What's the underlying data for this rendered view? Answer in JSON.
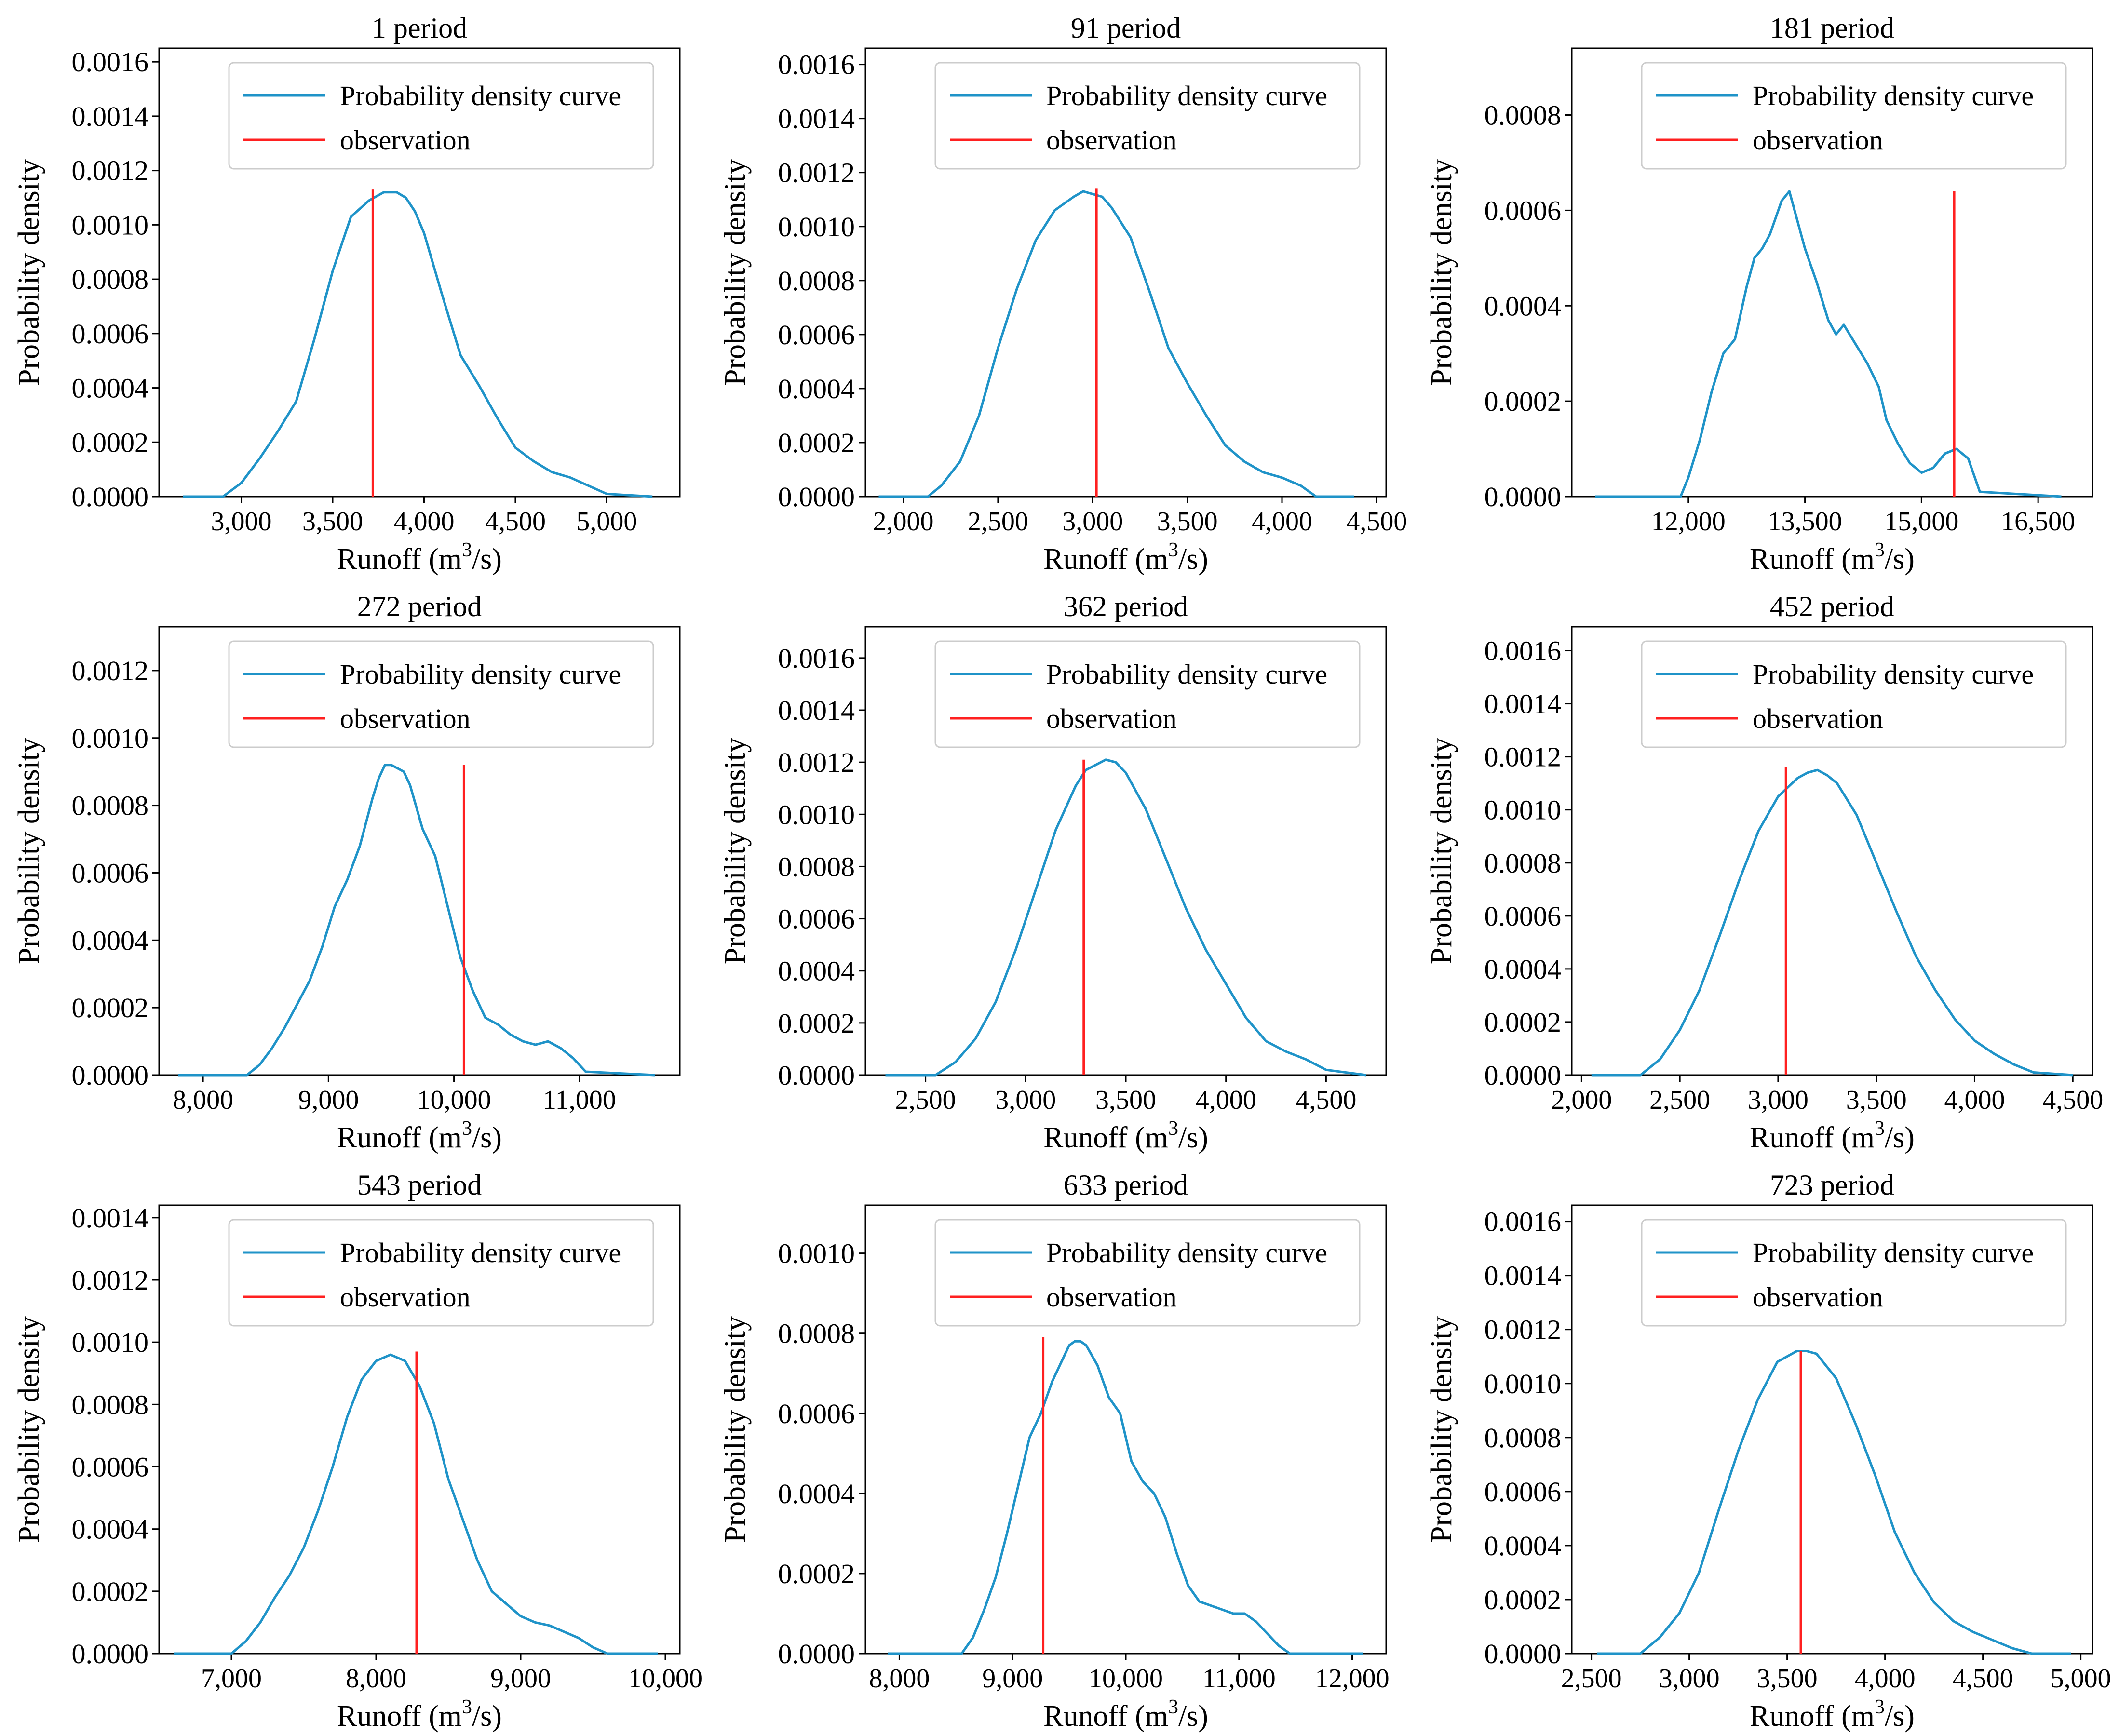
{
  "colors": {
    "curve": "#1f93c8",
    "observation": "#ff2020",
    "axis": "#000000",
    "legend_border": "#cccccc"
  },
  "chart_data": [
    {
      "type": "line",
      "title": "1 period",
      "xlabel": "Runoff (m",
      "xlabel_sup": "3",
      "xlabel_tail": "/s)",
      "ylabel": "Probability density",
      "xlim": [
        2550,
        5400
      ],
      "ylim": [
        0,
        0.00165
      ],
      "xticks": [
        3000,
        3500,
        4000,
        4500,
        5000
      ],
      "xtick_labels": [
        "3,000",
        "3,500",
        "4,000",
        "4,500",
        "5,000"
      ],
      "yticks": [
        0,
        0.0002,
        0.0004,
        0.0006,
        0.0008,
        0.001,
        0.0012,
        0.0014,
        0.0016
      ],
      "ytick_labels": [
        "0.0000",
        "0.0002",
        "0.0004",
        "0.0006",
        "0.0008",
        "0.0010",
        "0.0012",
        "0.0014",
        "0.0016"
      ],
      "series": [
        {
          "name": "Probability density curve",
          "x": [
            2680,
            2900,
            3000,
            3100,
            3200,
            3300,
            3400,
            3500,
            3600,
            3700,
            3780,
            3850,
            3900,
            3950,
            4000,
            4100,
            4200,
            4300,
            4400,
            4500,
            4600,
            4700,
            4800,
            4900,
            5000,
            5250
          ],
          "y": [
            0,
            0,
            5e-05,
            0.00014,
            0.00024,
            0.00035,
            0.00058,
            0.00083,
            0.00103,
            0.00109,
            0.00112,
            0.00112,
            0.0011,
            0.00105,
            0.00097,
            0.00074,
            0.00052,
            0.00041,
            0.00029,
            0.00018,
            0.00013,
            9e-05,
            7e-05,
            4e-05,
            1e-05,
            0
          ]
        }
      ],
      "observation": {
        "name": "observation",
        "x": 3720,
        "y_top": 0.00113
      }
    },
    {
      "type": "line",
      "title": "91 period",
      "xlabel": "Runoff (m",
      "xlabel_sup": "3",
      "xlabel_tail": "/s)",
      "ylabel": "Probability density",
      "xlim": [
        1800,
        4550
      ],
      "ylim": [
        0,
        0.00166
      ],
      "xticks": [
        2000,
        2500,
        3000,
        3500,
        4000,
        4500
      ],
      "xtick_labels": [
        "2,000",
        "2,500",
        "3,000",
        "3,500",
        "4,000",
        "4,500"
      ],
      "yticks": [
        0,
        0.0002,
        0.0004,
        0.0006,
        0.0008,
        0.001,
        0.0012,
        0.0014,
        0.0016
      ],
      "ytick_labels": [
        "0.0000",
        "0.0002",
        "0.0004",
        "0.0006",
        "0.0008",
        "0.0010",
        "0.0012",
        "0.0014",
        "0.0016"
      ],
      "series": [
        {
          "name": "Probability density curve",
          "x": [
            1870,
            2130,
            2200,
            2300,
            2400,
            2500,
            2600,
            2700,
            2800,
            2900,
            2950,
            3000,
            3050,
            3100,
            3200,
            3300,
            3400,
            3500,
            3600,
            3700,
            3800,
            3900,
            4000,
            4100,
            4180,
            4380
          ],
          "y": [
            0,
            0,
            4e-05,
            0.00013,
            0.0003,
            0.00055,
            0.00077,
            0.00095,
            0.00106,
            0.00111,
            0.00113,
            0.00112,
            0.00111,
            0.00107,
            0.00096,
            0.00076,
            0.00055,
            0.00042,
            0.0003,
            0.00019,
            0.00013,
            9e-05,
            7e-05,
            4e-05,
            0,
            0
          ]
        }
      ],
      "observation": {
        "name": "observation",
        "x": 3020,
        "y_top": 0.00114
      }
    },
    {
      "type": "line",
      "title": "181 period",
      "xlabel": "Runoff (m",
      "xlabel_sup": "3",
      "xlabel_tail": "/s)",
      "ylabel": "Probability density",
      "xlim": [
        10500,
        17200
      ],
      "ylim": [
        0,
        0.00094
      ],
      "xticks": [
        12000,
        13500,
        15000,
        16500
      ],
      "xtick_labels": [
        "12,000",
        "13,500",
        "15,000",
        "16,500"
      ],
      "yticks": [
        0,
        0.0002,
        0.0004,
        0.0006,
        0.0008
      ],
      "ytick_labels": [
        "0.0000",
        "0.0002",
        "0.0004",
        "0.0006",
        "0.0008"
      ],
      "series": [
        {
          "name": "Probability density curve",
          "x": [
            10800,
            11900,
            12000,
            12150,
            12300,
            12450,
            12600,
            12750,
            12850,
            12950,
            13050,
            13200,
            13300,
            13400,
            13500,
            13650,
            13800,
            13900,
            14000,
            14150,
            14300,
            14450,
            14550,
            14700,
            14850,
            15000,
            15150,
            15300,
            15450,
            15600,
            15750,
            16800
          ],
          "y": [
            0,
            0,
            4e-05,
            0.00012,
            0.00022,
            0.0003,
            0.00033,
            0.00044,
            0.0005,
            0.00052,
            0.00055,
            0.00062,
            0.00064,
            0.00058,
            0.00052,
            0.00045,
            0.00037,
            0.00034,
            0.00036,
            0.00032,
            0.00028,
            0.00023,
            0.00016,
            0.00011,
            7e-05,
            5e-05,
            6e-05,
            9e-05,
            0.0001,
            8e-05,
            1e-05,
            0
          ]
        }
      ],
      "observation": {
        "name": "observation",
        "x": 15420,
        "y_top": 0.00064
      }
    },
    {
      "type": "line",
      "title": "272 period",
      "xlabel": "Runoff (m",
      "xlabel_sup": "3",
      "xlabel_tail": "/s)",
      "ylabel": "Probability density",
      "xlim": [
        7650,
        11800
      ],
      "ylim": [
        0,
        0.00133
      ],
      "xticks": [
        8000,
        9000,
        10000,
        11000
      ],
      "xtick_labels": [
        "8,000",
        "9,000",
        "10,000",
        "11,000"
      ],
      "yticks": [
        0,
        0.0002,
        0.0004,
        0.0006,
        0.0008,
        0.001,
        0.0012
      ],
      "ytick_labels": [
        "0.0000",
        "0.0002",
        "0.0004",
        "0.0006",
        "0.0008",
        "0.0010",
        "0.0012"
      ],
      "series": [
        {
          "name": "Probability density curve",
          "x": [
            7800,
            8350,
            8450,
            8550,
            8650,
            8750,
            8850,
            8950,
            9050,
            9150,
            9250,
            9350,
            9400,
            9450,
            9500,
            9550,
            9600,
            9650,
            9750,
            9850,
            9950,
            10050,
            10150,
            10250,
            10350,
            10450,
            10550,
            10650,
            10750,
            10850,
            10950,
            11050,
            11600
          ],
          "y": [
            0,
            0,
            3e-05,
            8e-05,
            0.00014,
            0.00021,
            0.00028,
            0.00038,
            0.0005,
            0.00058,
            0.00068,
            0.00082,
            0.00088,
            0.00092,
            0.00092,
            0.00091,
            0.0009,
            0.00086,
            0.00073,
            0.00065,
            0.0005,
            0.00035,
            0.00025,
            0.00017,
            0.00015,
            0.00012,
            0.0001,
            9e-05,
            0.0001,
            8e-05,
            5e-05,
            1e-05,
            0
          ]
        }
      ],
      "observation": {
        "name": "observation",
        "x": 10080,
        "y_top": 0.00092
      }
    },
    {
      "type": "line",
      "title": "362 period",
      "xlabel": "Runoff (m",
      "xlabel_sup": "3",
      "xlabel_tail": "/s)",
      "ylabel": "Probability density",
      "xlim": [
        2200,
        4800
      ],
      "ylim": [
        0,
        0.00172
      ],
      "xticks": [
        2500,
        3000,
        3500,
        4000,
        4500
      ],
      "xtick_labels": [
        "2,500",
        "3,000",
        "3,500",
        "4,000",
        "4,500"
      ],
      "yticks": [
        0,
        0.0002,
        0.0004,
        0.0006,
        0.0008,
        0.001,
        0.0012,
        0.0014,
        0.0016
      ],
      "ytick_labels": [
        "0.0000",
        "0.0002",
        "0.0004",
        "0.0006",
        "0.0008",
        "0.0010",
        "0.0012",
        "0.0014",
        "0.0016"
      ],
      "series": [
        {
          "name": "Probability density curve",
          "x": [
            2300,
            2550,
            2650,
            2750,
            2850,
            2950,
            3050,
            3150,
            3250,
            3300,
            3350,
            3400,
            3450,
            3500,
            3600,
            3700,
            3800,
            3900,
            4000,
            4100,
            4200,
            4300,
            4400,
            4500,
            4700
          ],
          "y": [
            0,
            0,
            5e-05,
            0.00014,
            0.00028,
            0.00048,
            0.00071,
            0.00094,
            0.00111,
            0.00117,
            0.00119,
            0.00121,
            0.0012,
            0.00116,
            0.00102,
            0.00083,
            0.00064,
            0.00048,
            0.00035,
            0.00022,
            0.00013,
            9e-05,
            6e-05,
            2e-05,
            0
          ]
        }
      ],
      "observation": {
        "name": "observation",
        "x": 3290,
        "y_top": 0.00121
      }
    },
    {
      "type": "line",
      "title": "452 period",
      "xlabel": "Runoff (m",
      "xlabel_sup": "3",
      "xlabel_tail": "/s)",
      "ylabel": "Probability density",
      "xlim": [
        1950,
        4600
      ],
      "ylim": [
        0,
        0.00169
      ],
      "xticks": [
        2000,
        2500,
        3000,
        3500,
        4000,
        4500
      ],
      "xtick_labels": [
        "2,000",
        "2,500",
        "3,000",
        "3,500",
        "4,000",
        "4,500"
      ],
      "yticks": [
        0,
        0.0002,
        0.0004,
        0.0006,
        0.0008,
        0.001,
        0.0012,
        0.0014,
        0.0016
      ],
      "ytick_labels": [
        "0.0000",
        "0.0002",
        "0.0004",
        "0.0006",
        "0.0008",
        "0.0010",
        "0.0012",
        "0.0014",
        "0.0016"
      ],
      "series": [
        {
          "name": "Probability density curve",
          "x": [
            2050,
            2300,
            2400,
            2500,
            2600,
            2700,
            2800,
            2900,
            3000,
            3100,
            3150,
            3200,
            3250,
            3300,
            3400,
            3500,
            3600,
            3700,
            3800,
            3900,
            4000,
            4100,
            4200,
            4300,
            4500
          ],
          "y": [
            0,
            0,
            6e-05,
            0.00017,
            0.00032,
            0.00052,
            0.00073,
            0.00092,
            0.00105,
            0.00112,
            0.00114,
            0.00115,
            0.00113,
            0.0011,
            0.00098,
            0.0008,
            0.00062,
            0.00045,
            0.00032,
            0.00021,
            0.00013,
            8e-05,
            4e-05,
            1e-05,
            0
          ]
        }
      ],
      "observation": {
        "name": "observation",
        "x": 3040,
        "y_top": 0.00116
      }
    },
    {
      "type": "line",
      "title": "543 period",
      "xlabel": "Runoff (m",
      "xlabel_sup": "3",
      "xlabel_tail": "/s)",
      "ylabel": "Probability density",
      "xlim": [
        6500,
        10100
      ],
      "ylim": [
        0,
        0.00144
      ],
      "xticks": [
        7000,
        8000,
        9000,
        10000
      ],
      "xtick_labels": [
        "7,000",
        "8,000",
        "9,000",
        "10,000"
      ],
      "yticks": [
        0,
        0.0002,
        0.0004,
        0.0006,
        0.0008,
        0.001,
        0.0012,
        0.0014
      ],
      "ytick_labels": [
        "0.0000",
        "0.0002",
        "0.0004",
        "0.0006",
        "0.0008",
        "0.0010",
        "0.0012",
        "0.0014"
      ],
      "series": [
        {
          "name": "Probability density curve",
          "x": [
            6600,
            7000,
            7100,
            7200,
            7300,
            7400,
            7500,
            7600,
            7700,
            7800,
            7900,
            8000,
            8100,
            8200,
            8300,
            8400,
            8500,
            8600,
            8700,
            8800,
            8900,
            9000,
            9100,
            9200,
            9300,
            9400,
            9500,
            9600,
            9950
          ],
          "y": [
            0,
            0,
            4e-05,
            0.0001,
            0.00018,
            0.00025,
            0.00034,
            0.00046,
            0.0006,
            0.00076,
            0.00088,
            0.00094,
            0.00096,
            0.00094,
            0.00086,
            0.00074,
            0.00056,
            0.00043,
            0.0003,
            0.0002,
            0.00016,
            0.00012,
            0.0001,
            9e-05,
            7e-05,
            5e-05,
            2e-05,
            0,
            0
          ]
        }
      ],
      "observation": {
        "name": "observation",
        "x": 8280,
        "y_top": 0.00097
      }
    },
    {
      "type": "line",
      "title": "633 period",
      "xlabel": "Runoff (m",
      "xlabel_sup": "3",
      "xlabel_tail": "/s)",
      "ylabel": "Probability density",
      "xlim": [
        7700,
        12300
      ],
      "ylim": [
        0,
        0.00112
      ],
      "xticks": [
        8000,
        9000,
        10000,
        11000,
        12000
      ],
      "xtick_labels": [
        "8,000",
        "9,000",
        "10,000",
        "11,000",
        "12,000"
      ],
      "yticks": [
        0,
        0.0002,
        0.0004,
        0.0006,
        0.0008,
        0.001
      ],
      "ytick_labels": [
        "0.0000",
        "0.0002",
        "0.0004",
        "0.0006",
        "0.0008",
        "0.0010"
      ],
      "series": [
        {
          "name": "Probability density curve",
          "x": [
            7900,
            8550,
            8650,
            8750,
            8850,
            8950,
            9050,
            9150,
            9250,
            9350,
            9450,
            9500,
            9550,
            9600,
            9650,
            9750,
            9850,
            9950,
            10050,
            10150,
            10250,
            10350,
            10450,
            10550,
            10650,
            10750,
            10850,
            10950,
            11050,
            11150,
            11250,
            11350,
            11450,
            12100
          ],
          "y": [
            0,
            0,
            4e-05,
            0.00011,
            0.00019,
            0.0003,
            0.00042,
            0.00054,
            0.0006,
            0.00068,
            0.00074,
            0.00077,
            0.00078,
            0.00078,
            0.00077,
            0.00072,
            0.00064,
            0.0006,
            0.00048,
            0.00043,
            0.0004,
            0.00034,
            0.00025,
            0.00017,
            0.00013,
            0.00012,
            0.00011,
            0.0001,
            0.0001,
            8e-05,
            5e-05,
            2e-05,
            0,
            0
          ]
        }
      ],
      "observation": {
        "name": "observation",
        "x": 9270,
        "y_top": 0.00079
      }
    },
    {
      "type": "line",
      "title": "723 period",
      "xlabel": "Runoff (m",
      "xlabel_sup": "3",
      "xlabel_tail": "/s)",
      "ylabel": "Probability density",
      "xlim": [
        2400,
        5060
      ],
      "ylim": [
        0,
        0.00166
      ],
      "xticks": [
        2500,
        3000,
        3500,
        4000,
        4500,
        5000
      ],
      "xtick_labels": [
        "2,500",
        "3,000",
        "3,500",
        "4,000",
        "4,500",
        "5,000"
      ],
      "yticks": [
        0,
        0.0002,
        0.0004,
        0.0006,
        0.0008,
        0.001,
        0.0012,
        0.0014,
        0.0016
      ],
      "ytick_labels": [
        "0.0000",
        "0.0002",
        "0.0004",
        "0.0006",
        "0.0008",
        "0.0010",
        "0.0012",
        "0.0014",
        "0.0016"
      ],
      "series": [
        {
          "name": "Probability density curve",
          "x": [
            2530,
            2750,
            2850,
            2950,
            3050,
            3150,
            3250,
            3350,
            3450,
            3550,
            3600,
            3650,
            3750,
            3850,
            3950,
            4050,
            4150,
            4250,
            4350,
            4450,
            4550,
            4650,
            4750,
            4950
          ],
          "y": [
            0,
            0,
            6e-05,
            0.00015,
            0.0003,
            0.00053,
            0.00075,
            0.00094,
            0.00108,
            0.00112,
            0.00112,
            0.00111,
            0.00102,
            0.00085,
            0.00066,
            0.00045,
            0.0003,
            0.00019,
            0.00012,
            8e-05,
            5e-05,
            2e-05,
            0,
            0
          ]
        }
      ],
      "observation": {
        "name": "observation",
        "x": 3570,
        "y_top": 0.00112
      }
    }
  ]
}
